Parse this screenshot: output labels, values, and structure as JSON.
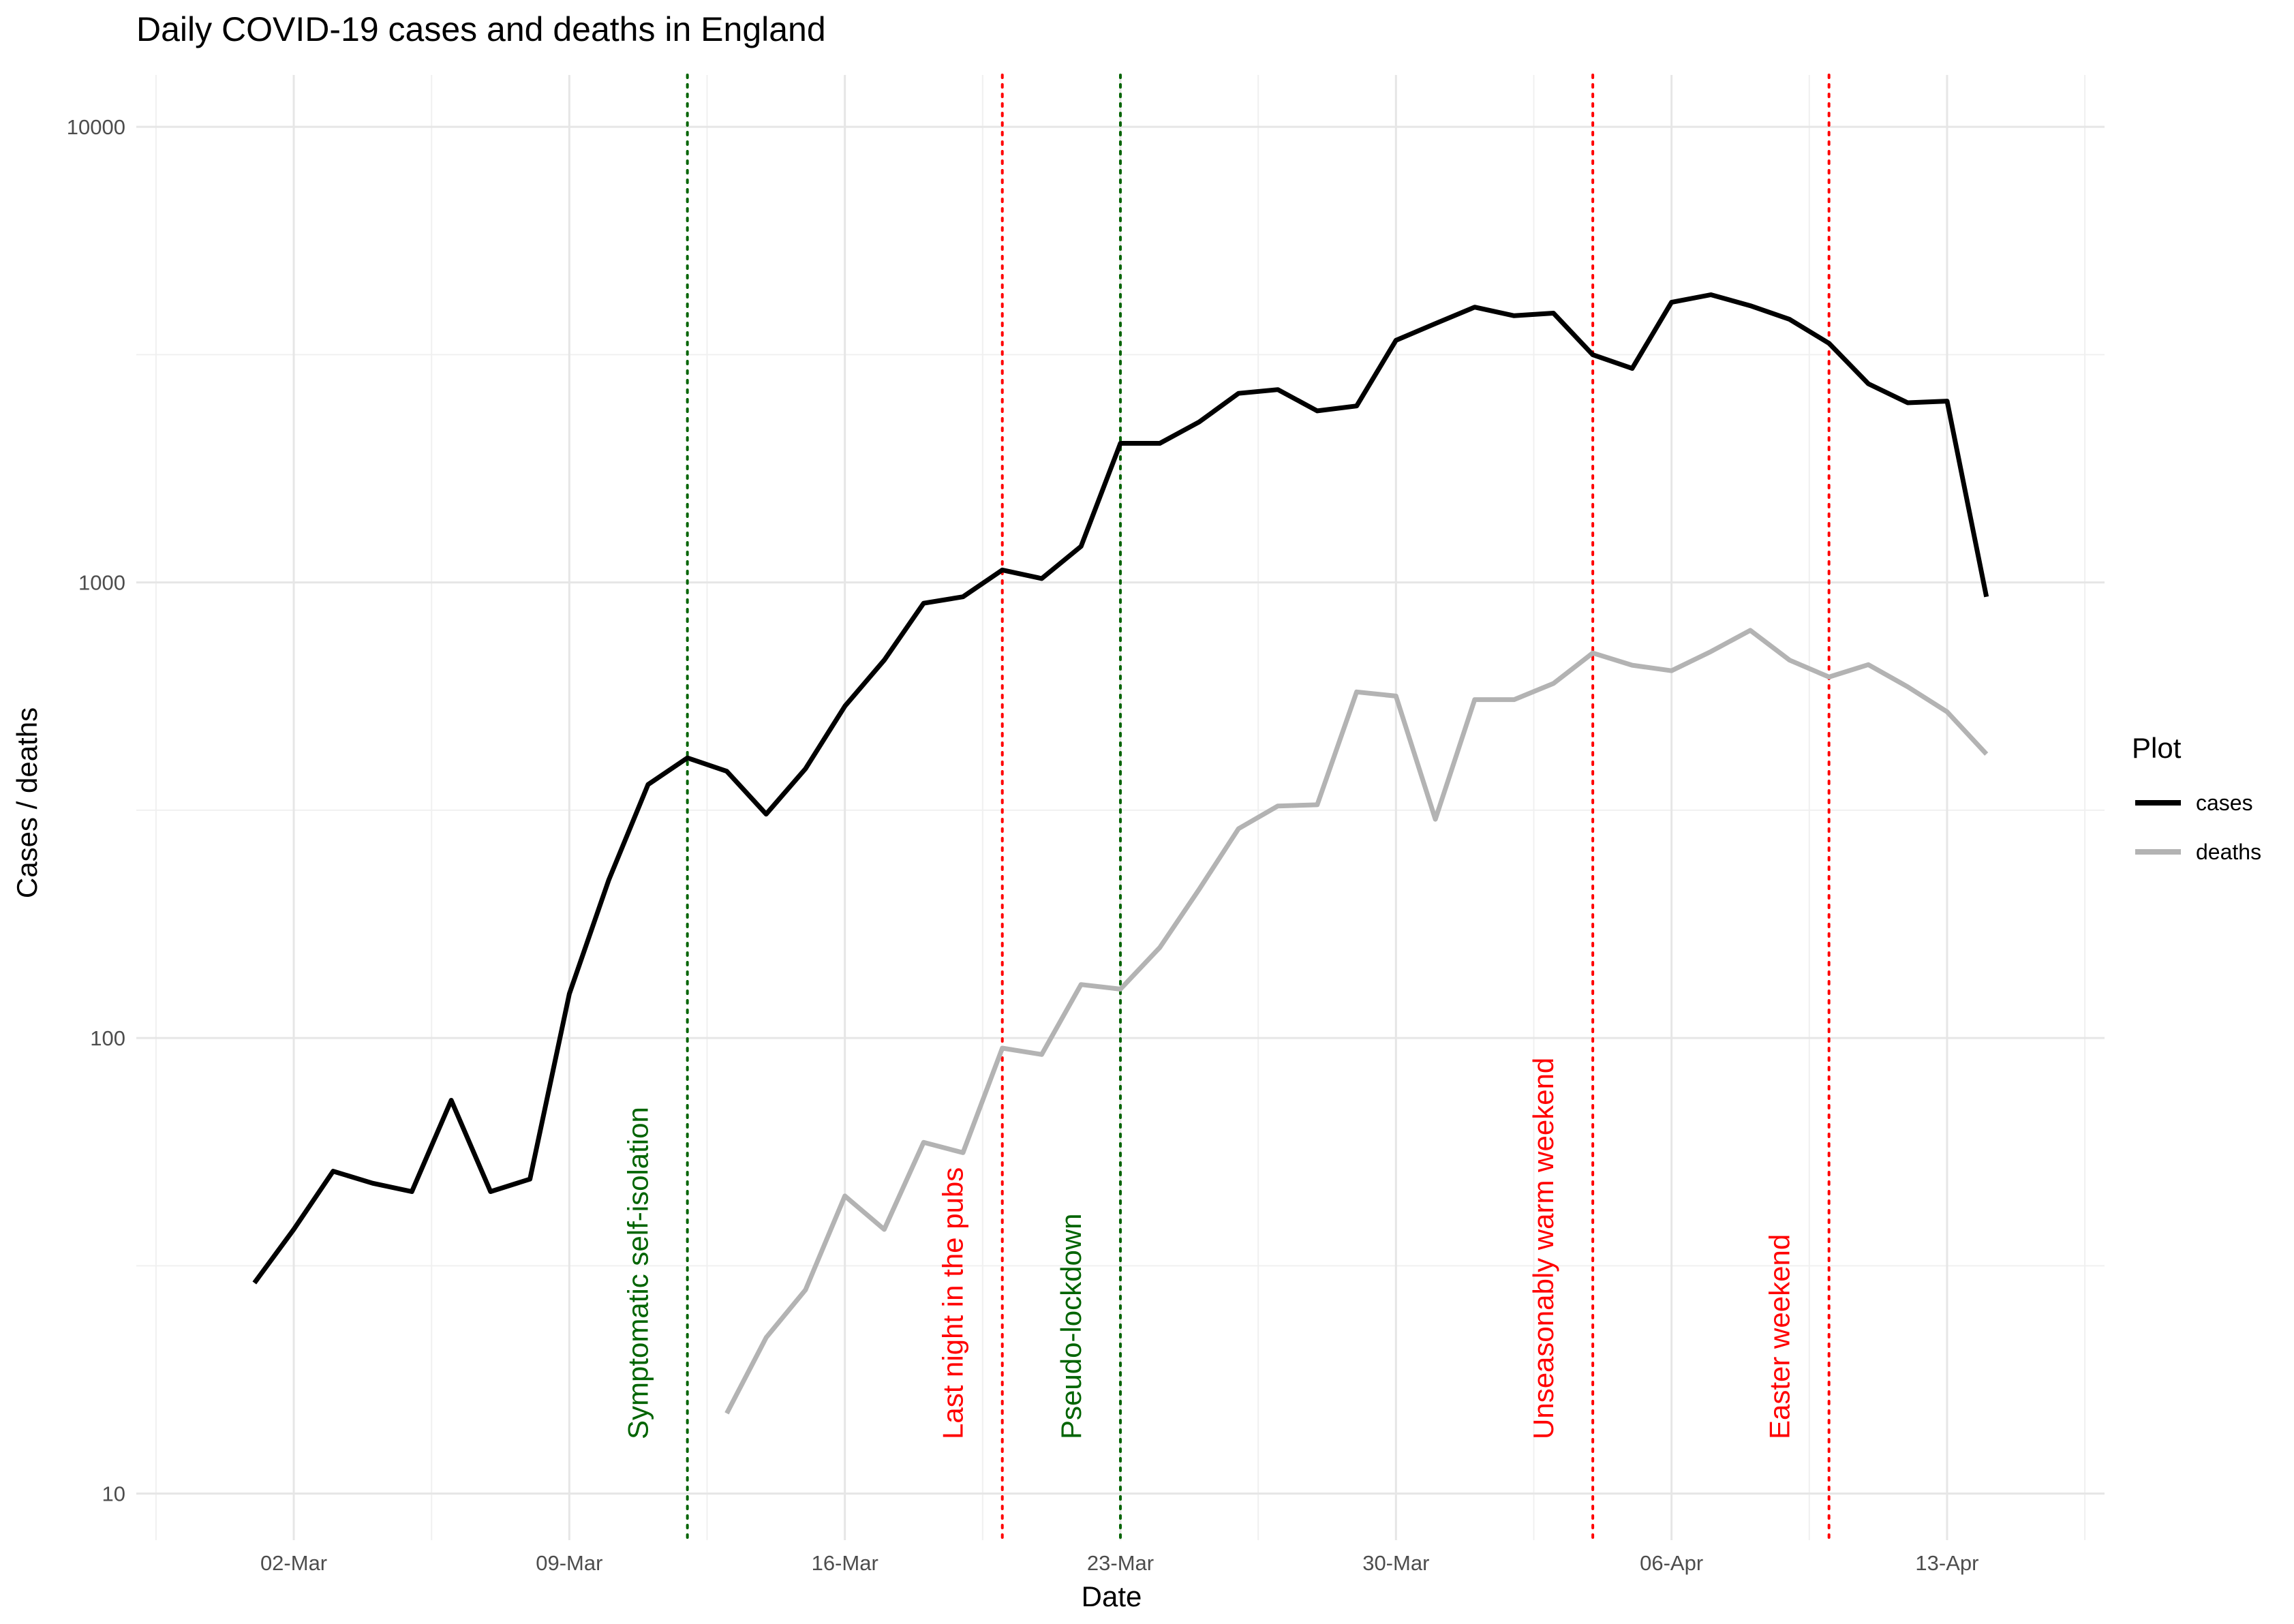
{
  "chart_data": {
    "type": "line",
    "title": "Daily COVID-19 cases and deaths in England",
    "xlabel": "Date",
    "ylabel": "Cases / deaths",
    "y_scale": "log10",
    "ylim": [
      7.9,
      13000
    ],
    "xlim": [
      "2020-02-27",
      "2020-04-17"
    ],
    "x_ticks": [
      {
        "date": "2020-03-02",
        "label": "02-Mar"
      },
      {
        "date": "2020-03-09",
        "label": "09-Mar"
      },
      {
        "date": "2020-03-16",
        "label": "16-Mar"
      },
      {
        "date": "2020-03-23",
        "label": "23-Mar"
      },
      {
        "date": "2020-03-30",
        "label": "30-Mar"
      },
      {
        "date": "2020-04-06",
        "label": "06-Apr"
      },
      {
        "date": "2020-04-13",
        "label": "13-Apr"
      }
    ],
    "y_ticks": [
      {
        "value": 10,
        "label": "10"
      },
      {
        "value": 100,
        "label": "100"
      },
      {
        "value": 1000,
        "label": "1000"
      },
      {
        "value": 10000,
        "label": "10000"
      }
    ],
    "y_minor_ticks": [
      31.62,
      316.2,
      3162
    ],
    "grid": true,
    "legend": {
      "title": "Plot",
      "position": "right"
    },
    "series": [
      {
        "name": "cases",
        "color": "#000000",
        "points": [
          [
            "2020-03-01",
            29
          ],
          [
            "2020-03-02",
            38
          ],
          [
            "2020-03-03",
            51
          ],
          [
            "2020-03-04",
            48
          ],
          [
            "2020-03-05",
            46
          ],
          [
            "2020-03-06",
            73
          ],
          [
            "2020-03-07",
            46
          ],
          [
            "2020-03-08",
            49
          ],
          [
            "2020-03-09",
            125
          ],
          [
            "2020-03-10",
            222
          ],
          [
            "2020-03-11",
            360
          ],
          [
            "2020-03-12",
            412
          ],
          [
            "2020-03-13",
            385
          ],
          [
            "2020-03-14",
            310
          ],
          [
            "2020-03-15",
            390
          ],
          [
            "2020-03-16",
            535
          ],
          [
            "2020-03-17",
            675
          ],
          [
            "2020-03-18",
            900
          ],
          [
            "2020-03-19",
            930
          ],
          [
            "2020-03-20",
            1065
          ],
          [
            "2020-03-21",
            1020
          ],
          [
            "2020-03-22",
            1200
          ],
          [
            "2020-03-23",
            2020
          ],
          [
            "2020-03-24",
            2020
          ],
          [
            "2020-03-25",
            2250
          ],
          [
            "2020-03-26",
            2600
          ],
          [
            "2020-03-27",
            2650
          ],
          [
            "2020-03-28",
            2380
          ],
          [
            "2020-03-29",
            2440
          ],
          [
            "2020-03-30",
            3400
          ],
          [
            "2020-03-31",
            3700
          ],
          [
            "2020-04-01",
            4020
          ],
          [
            "2020-04-02",
            3850
          ],
          [
            "2020-04-03",
            3900
          ],
          [
            "2020-04-04",
            3160
          ],
          [
            "2020-04-05",
            2950
          ],
          [
            "2020-04-06",
            4120
          ],
          [
            "2020-04-07",
            4280
          ],
          [
            "2020-04-08",
            4050
          ],
          [
            "2020-04-09",
            3780
          ],
          [
            "2020-04-10",
            3350
          ],
          [
            "2020-04-11",
            2730
          ],
          [
            "2020-04-12",
            2480
          ],
          [
            "2020-04-13",
            2500
          ],
          [
            "2020-04-14",
            930
          ]
        ]
      },
      {
        "name": "deaths",
        "color": "#b3b3b3",
        "points": [
          [
            "2020-03-13",
            15
          ],
          [
            "2020-03-14",
            22
          ],
          [
            "2020-03-15",
            28
          ],
          [
            "2020-03-16",
            45
          ],
          [
            "2020-03-17",
            38
          ],
          [
            "2020-03-18",
            59
          ],
          [
            "2020-03-19",
            56
          ],
          [
            "2020-03-20",
            95
          ],
          [
            "2020-03-21",
            92
          ],
          [
            "2020-03-22",
            131
          ],
          [
            "2020-03-23",
            128
          ],
          [
            "2020-03-24",
            158
          ],
          [
            "2020-03-25",
            212
          ],
          [
            "2020-03-26",
            288
          ],
          [
            "2020-03-27",
            323
          ],
          [
            "2020-03-28",
            325
          ],
          [
            "2020-03-29",
            575
          ],
          [
            "2020-03-30",
            563
          ],
          [
            "2020-03-31",
            302
          ],
          [
            "2020-04-01",
            553
          ],
          [
            "2020-04-02",
            553
          ],
          [
            "2020-04-03",
            600
          ],
          [
            "2020-04-04",
            700
          ],
          [
            "2020-04-05",
            658
          ],
          [
            "2020-04-06",
            640
          ],
          [
            "2020-04-07",
            705
          ],
          [
            "2020-04-08",
            785
          ],
          [
            "2020-04-09",
            675
          ],
          [
            "2020-04-10",
            620
          ],
          [
            "2020-04-11",
            660
          ],
          [
            "2020-04-12",
            590
          ],
          [
            "2020-04-13",
            520
          ],
          [
            "2020-04-14",
            420
          ]
        ]
      }
    ],
    "annotations": [
      {
        "date": "2020-03-12",
        "label": "Symptomatic self-isolation",
        "color": "#006400"
      },
      {
        "date": "2020-03-20",
        "label": "Last night in the pubs",
        "color": "#ff0000"
      },
      {
        "date": "2020-03-23",
        "label": "Pseudo-lockdown",
        "color": "#006400"
      },
      {
        "date": "2020-04-04",
        "label": "Unseasonably warm weekend",
        "color": "#ff0000"
      },
      {
        "date": "2020-04-10",
        "label": "Easter weekend",
        "color": "#ff0000"
      }
    ]
  }
}
